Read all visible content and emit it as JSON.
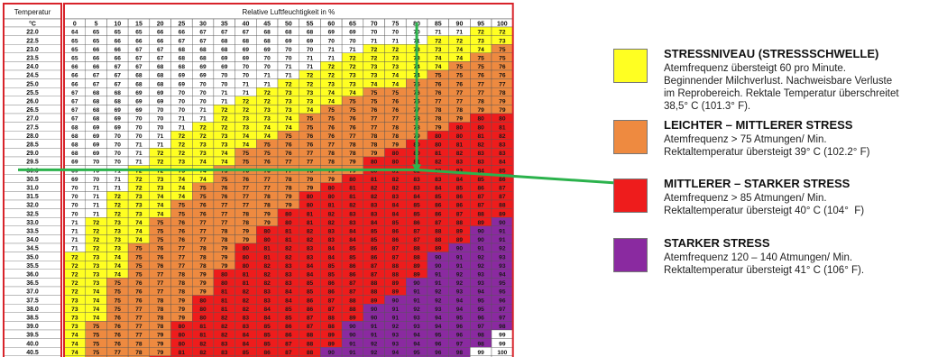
{
  "chart_data": {
    "type": "heatmap",
    "corner_label": "Temperatur",
    "unit_label": "°C",
    "column_header": "Relative Luftfeuchtigkeit in %",
    "humidity": [
      0,
      5,
      10,
      15,
      20,
      25,
      30,
      35,
      40,
      45,
      50,
      55,
      60,
      65,
      70,
      75,
      80,
      85,
      90,
      95,
      100
    ],
    "temperature": [
      "22.0",
      "22.5",
      "23.0",
      "23.5",
      "24.0",
      "24.5",
      "25.0",
      "25.5",
      "26.0",
      "26.5",
      "27.0",
      "27.5",
      "28.0",
      "28.5",
      "29.0",
      "29.5",
      "30.0",
      "30.5",
      "31.0",
      "31.5",
      "32.0",
      "32.5",
      "33.0",
      "33.5",
      "34.0",
      "34.5",
      "35.0",
      "35.5",
      "36.0",
      "36.5",
      "37.0",
      "37.5",
      "38.0",
      "38.5",
      "39.0",
      "39.5",
      "40.0",
      "40.5",
      "41.0",
      "41.5"
    ],
    "values": [
      [
        64,
        65,
        65,
        65,
        66,
        66,
        67,
        67,
        67,
        68,
        68,
        68,
        69,
        69,
        70,
        70,
        70,
        71,
        71,
        72,
        72
      ],
      [
        65,
        65,
        66,
        66,
        66,
        67,
        67,
        68,
        68,
        68,
        69,
        69,
        70,
        70,
        71,
        71,
        71,
        72,
        72,
        73,
        73
      ],
      [
        65,
        66,
        66,
        67,
        67,
        68,
        68,
        68,
        69,
        69,
        70,
        70,
        71,
        71,
        72,
        72,
        73,
        73,
        74,
        74,
        75
      ],
      [
        65,
        66,
        66,
        67,
        67,
        68,
        68,
        69,
        69,
        70,
        70,
        71,
        71,
        72,
        72,
        73,
        73,
        74,
        74,
        75,
        75
      ],
      [
        66,
        66,
        67,
        67,
        68,
        68,
        69,
        69,
        70,
        70,
        71,
        71,
        72,
        72,
        73,
        73,
        74,
        74,
        75,
        75,
        76
      ],
      [
        66,
        67,
        67,
        68,
        68,
        69,
        69,
        70,
        70,
        71,
        71,
        72,
        72,
        73,
        73,
        74,
        74,
        75,
        75,
        76,
        76
      ],
      [
        66,
        67,
        67,
        68,
        68,
        69,
        70,
        70,
        71,
        71,
        72,
        72,
        73,
        73,
        74,
        74,
        75,
        76,
        76,
        77,
        77
      ],
      [
        67,
        68,
        68,
        69,
        69,
        70,
        70,
        71,
        71,
        72,
        73,
        73,
        74,
        74,
        75,
        75,
        76,
        76,
        77,
        77,
        78
      ],
      [
        67,
        68,
        68,
        69,
        69,
        70,
        70,
        71,
        72,
        72,
        73,
        73,
        74,
        75,
        75,
        76,
        76,
        77,
        77,
        78,
        79
      ],
      [
        67,
        68,
        69,
        69,
        70,
        70,
        71,
        72,
        72,
        73,
        73,
        74,
        75,
        75,
        76,
        76,
        77,
        78,
        78,
        79,
        79
      ],
      [
        67,
        68,
        69,
        70,
        70,
        71,
        71,
        72,
        73,
        73,
        74,
        75,
        75,
        76,
        77,
        77,
        78,
        78,
        79,
        80,
        80
      ],
      [
        68,
        69,
        69,
        70,
        70,
        71,
        72,
        72,
        73,
        74,
        74,
        75,
        76,
        76,
        77,
        78,
        78,
        79,
        80,
        80,
        81
      ],
      [
        68,
        69,
        70,
        70,
        71,
        72,
        72,
        73,
        74,
        74,
        75,
        76,
        76,
        77,
        78,
        78,
        79,
        80,
        80,
        81,
        82
      ],
      [
        68,
        69,
        70,
        71,
        71,
        72,
        73,
        73,
        74,
        75,
        76,
        76,
        77,
        78,
        78,
        79,
        80,
        80,
        81,
        82,
        83
      ],
      [
        68,
        69,
        70,
        71,
        72,
        72,
        73,
        74,
        75,
        75,
        76,
        77,
        78,
        78,
        79,
        80,
        80,
        81,
        82,
        83,
        83
      ],
      [
        69,
        70,
        70,
        71,
        72,
        73,
        74,
        74,
        75,
        76,
        77,
        77,
        78,
        79,
        80,
        80,
        81,
        82,
        83,
        83,
        84
      ],
      [
        69,
        70,
        71,
        72,
        72,
        73,
        74,
        75,
        76,
        76,
        77,
        78,
        79,
        79,
        80,
        81,
        82,
        83,
        83,
        84,
        85
      ],
      [
        69,
        70,
        71,
        72,
        73,
        74,
        74,
        75,
        76,
        77,
        78,
        79,
        79,
        80,
        81,
        82,
        83,
        83,
        84,
        85,
        86
      ],
      [
        70,
        71,
        71,
        72,
        73,
        74,
        75,
        76,
        77,
        77,
        78,
        79,
        80,
        81,
        82,
        82,
        83,
        84,
        85,
        86,
        87
      ],
      [
        70,
        71,
        72,
        73,
        74,
        74,
        75,
        76,
        77,
        78,
        79,
        80,
        80,
        81,
        82,
        83,
        84,
        85,
        86,
        87,
        87
      ],
      [
        70,
        71,
        72,
        73,
        74,
        75,
        76,
        77,
        77,
        78,
        79,
        80,
        81,
        82,
        83,
        84,
        85,
        86,
        86,
        87,
        88
      ],
      [
        70,
        71,
        72,
        73,
        74,
        75,
        76,
        77,
        78,
        79,
        80,
        81,
        82,
        83,
        83,
        84,
        85,
        86,
        87,
        88,
        89
      ],
      [
        71,
        72,
        73,
        74,
        75,
        76,
        77,
        77,
        78,
        79,
        80,
        81,
        82,
        83,
        84,
        85,
        86,
        87,
        88,
        89,
        90
      ],
      [
        71,
        72,
        73,
        74,
        75,
        76,
        77,
        78,
        79,
        80,
        81,
        82,
        83,
        84,
        85,
        86,
        87,
        88,
        89,
        90,
        91
      ],
      [
        71,
        72,
        73,
        74,
        75,
        76,
        77,
        78,
        79,
        80,
        81,
        82,
        83,
        84,
        85,
        86,
        87,
        88,
        89,
        90,
        91
      ],
      [
        71,
        72,
        73,
        75,
        76,
        77,
        78,
        79,
        80,
        81,
        82,
        83,
        84,
        85,
        86,
        87,
        88,
        89,
        90,
        91,
        92
      ],
      [
        72,
        73,
        74,
        75,
        76,
        77,
        78,
        79,
        80,
        81,
        82,
        83,
        84,
        85,
        86,
        87,
        88,
        90,
        91,
        92,
        93
      ],
      [
        72,
        73,
        74,
        75,
        76,
        77,
        78,
        79,
        80,
        82,
        83,
        84,
        85,
        86,
        87,
        88,
        89,
        90,
        91,
        92,
        93
      ],
      [
        72,
        73,
        74,
        75,
        77,
        78,
        79,
        80,
        81,
        82,
        83,
        84,
        85,
        86,
        87,
        88,
        89,
        91,
        92,
        93,
        94
      ],
      [
        72,
        73,
        75,
        76,
        77,
        78,
        79,
        80,
        81,
        82,
        83,
        85,
        86,
        87,
        88,
        89,
        90,
        91,
        92,
        93,
        95
      ],
      [
        72,
        74,
        75,
        76,
        77,
        78,
        79,
        81,
        82,
        83,
        84,
        85,
        86,
        87,
        88,
        89,
        91,
        92,
        93,
        94,
        95
      ],
      [
        73,
        74,
        75,
        76,
        78,
        79,
        80,
        81,
        82,
        83,
        84,
        86,
        87,
        88,
        89,
        90,
        91,
        92,
        94,
        95,
        96
      ],
      [
        73,
        74,
        75,
        77,
        78,
        79,
        80,
        81,
        82,
        84,
        85,
        86,
        87,
        88,
        90,
        91,
        92,
        93,
        94,
        95,
        97
      ],
      [
        73,
        74,
        76,
        77,
        78,
        79,
        80,
        82,
        83,
        84,
        85,
        87,
        88,
        89,
        90,
        91,
        93,
        94,
        95,
        96,
        97
      ],
      [
        73,
        75,
        76,
        77,
        78,
        80,
        81,
        82,
        83,
        85,
        86,
        87,
        88,
        90,
        91,
        92,
        93,
        94,
        96,
        97,
        98
      ],
      [
        74,
        75,
        76,
        77,
        79,
        80,
        81,
        82,
        84,
        85,
        86,
        88,
        89,
        90,
        91,
        93,
        94,
        95,
        96,
        98,
        99
      ],
      [
        74,
        75,
        76,
        78,
        79,
        80,
        82,
        83,
        84,
        85,
        87,
        88,
        89,
        91,
        92,
        93,
        94,
        96,
        97,
        98,
        99
      ],
      [
        74,
        75,
        77,
        78,
        79,
        81,
        82,
        83,
        85,
        86,
        87,
        88,
        90,
        91,
        92,
        94,
        95,
        96,
        98,
        99,
        100
      ],
      [
        74,
        76,
        77,
        78,
        80,
        81,
        82,
        84,
        85,
        86,
        88,
        89,
        90,
        92,
        93,
        94,
        96,
        97,
        98,
        100,
        101
      ],
      [
        75,
        76,
        77,
        79,
        80,
        81,
        83,
        84,
        85,
        87,
        88,
        89,
        91,
        92,
        94,
        95,
        96,
        98,
        99,
        100,
        102
      ]
    ],
    "markers": {
      "humidity": 80,
      "temperature": "30.0"
    },
    "color_bands": [
      {
        "max": 71,
        "color": "#ffffff"
      },
      {
        "max": 74,
        "color": "#ffff22"
      },
      {
        "max": 79,
        "color": "#ee8a40"
      },
      {
        "max": 89,
        "color": "#ee1c1c"
      },
      {
        "max": 98,
        "color": "#8a2aa0"
      },
      {
        "max": 200,
        "color": "#ffffff"
      }
    ],
    "legend": [
      {
        "title": "STRESSNIVEAU (STRESSSCHWELLE)",
        "color": "#ffff22",
        "lines": [
          "Atemfrequenz übersteigt 60 pro Minute.",
          "Beginnender Milchverlust. Nachweisbare Verluste",
          "im Reprobereich. Rektale Temperatur überschreitet",
          "38,5° C (101.3° F)."
        ]
      },
      {
        "title": "LEICHTER – MITTLERER STRESS",
        "color": "#ee8a40",
        "lines": [
          "Atemfrequenz > 75 Atmungen/ Min.",
          "Rektaltemperatur übersteigt 39° C (102.2° F)"
        ]
      },
      {
        "title": "MITTLERER – STARKER STRESS",
        "color": "#ee1c1c",
        "lines": [
          "Atemfrequenz > 85 Atmungen/ Min.",
          "Rektaltemperatur übersteigt 40° C (104°  F)"
        ]
      },
      {
        "title": "STARKER STRESS",
        "color": "#8a2aa0",
        "lines": [
          "Atemfrequenz 120 – 140 Atmungen/ Min.",
          "Rektaltemperatur übersteigt 41° C (106° F)."
        ]
      }
    ]
  }
}
